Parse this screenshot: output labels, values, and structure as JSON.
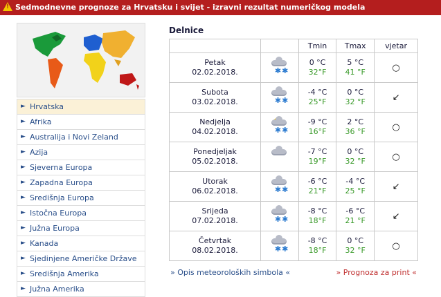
{
  "header": {
    "title": "Sedmodnevne prognoze za Hrvatsku i svijet - izravni rezultat numeričkog modela"
  },
  "nav": {
    "items": [
      {
        "label": "Hrvatska",
        "active": true
      },
      {
        "label": "Afrika"
      },
      {
        "label": "Australija i Novi Zeland"
      },
      {
        "label": "Azija"
      },
      {
        "label": "Sjeverna Europa"
      },
      {
        "label": "Zapadna Europa"
      },
      {
        "label": "Središnja Europa"
      },
      {
        "label": "Istočna Europa"
      },
      {
        "label": "Južna Europa"
      },
      {
        "label": "Kanada"
      },
      {
        "label": "Sjedinjene Američke Države"
      },
      {
        "label": "Središnja Amerika"
      },
      {
        "label": "Južna Amerika"
      }
    ],
    "arrow": "►"
  },
  "forecast": {
    "city": "Delnice",
    "columns": {
      "tmin": "Tmin",
      "tmax": "Tmax",
      "wind": "vjetar"
    },
    "days": [
      {
        "day": "Petak",
        "date": "02.02.2018.",
        "icon": "snow-cloud-icon",
        "snow": "✱✱",
        "tmin_c": "0 °C",
        "tmin_f": "32°F",
        "tmax_c": "5 °C",
        "tmax_f": "41 °F",
        "wind": "○"
      },
      {
        "day": "Subota",
        "date": "03.02.2018.",
        "icon": "snow-cloud-icon",
        "snow": "✱✱",
        "tmin_c": "-4 °C",
        "tmin_f": "25°F",
        "tmax_c": "0 °C",
        "tmax_f": "32 °F",
        "wind": "↙"
      },
      {
        "day": "Nedjelja",
        "date": "04.02.2018.",
        "icon": "sun-snow-icon",
        "snow": "✱✱",
        "tmin_c": "-9 °C",
        "tmin_f": "16°F",
        "tmax_c": "2 °C",
        "tmax_f": "36 °F",
        "wind": "○"
      },
      {
        "day": "Ponedjeljak",
        "date": "05.02.2018.",
        "icon": "cloud-icon",
        "snow": "",
        "tmin_c": "-7 °C",
        "tmin_f": "19°F",
        "tmax_c": "0 °C",
        "tmax_f": "32 °F",
        "wind": "○"
      },
      {
        "day": "Utorak",
        "date": "06.02.2018.",
        "icon": "snow-cloud-icon",
        "snow": "✱✱",
        "tmin_c": "-6 °C",
        "tmin_f": "21°F",
        "tmax_c": "-4 °C",
        "tmax_f": "25 °F",
        "wind": "↙"
      },
      {
        "day": "Srijeda",
        "date": "07.02.2018.",
        "icon": "snow-cloud-icon",
        "snow": "✱✱",
        "tmin_c": "-8 °C",
        "tmin_f": "18°F",
        "tmax_c": "-6 °C",
        "tmax_f": "21 °F",
        "wind": "↙"
      },
      {
        "day": "Četvrtak",
        "date": "08.02.2018.",
        "icon": "snow-cloud-icon",
        "snow": "✱✱",
        "tmin_c": "-8 °C",
        "tmin_f": "18°F",
        "tmax_c": "0 °C",
        "tmax_f": "32 °F",
        "wind": "○"
      }
    ]
  },
  "links": {
    "symbols": "» Opis meteoroloških simbola «",
    "print": "» Prognoza za print «"
  },
  "colors": {
    "header": "#b41e1e",
    "celsius": "#1a1a3a",
    "fahrenheit": "#3a9a2a",
    "link": "#2a4f8a",
    "print_link": "#c03030"
  }
}
